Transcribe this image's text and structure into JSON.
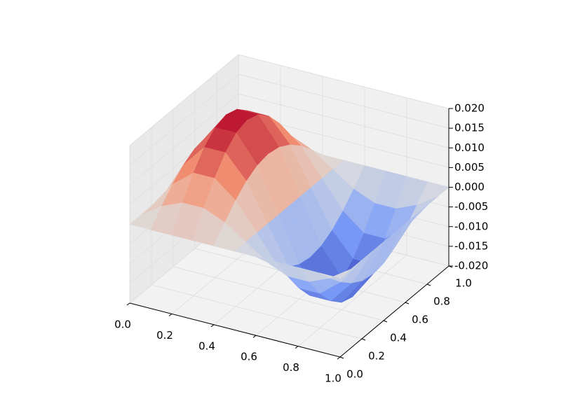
{
  "chart_data": {
    "type": "surface",
    "colormap": "coolwarm",
    "grid": true,
    "x": [
      0,
      0.1,
      0.2,
      0.3,
      0.4,
      0.5,
      0.6,
      0.7,
      0.8,
      0.9,
      1
    ],
    "y": [
      0,
      0.1,
      0.2,
      0.3,
      0.4,
      0.5,
      0.6,
      0.7,
      0.8,
      0.9,
      1
    ],
    "z": [
      [
        0,
        0,
        0,
        0,
        0,
        0,
        0,
        0,
        0,
        0,
        0
      ],
      [
        0,
        0.00363,
        0.00691,
        0.00951,
        0.01118,
        0.01176,
        0.01118,
        0.00951,
        0.00691,
        0.00363,
        0
      ],
      [
        0,
        0.00588,
        0.01118,
        0.01539,
        0.01809,
        0.01902,
        0.01809,
        0.01539,
        0.01118,
        0.00588,
        0
      ],
      [
        0,
        0.00588,
        0.01118,
        0.01539,
        0.01809,
        0.01902,
        0.01809,
        0.01539,
        0.01118,
        0.00588,
        0
      ],
      [
        0,
        0.00363,
        0.00691,
        0.00951,
        0.01118,
        0.01176,
        0.01118,
        0.00951,
        0.00691,
        0.00363,
        0
      ],
      [
        0,
        0,
        0,
        0,
        0,
        0,
        0,
        0,
        0,
        0,
        0
      ],
      [
        0,
        -0.00363,
        -0.00691,
        -0.00951,
        -0.01118,
        -0.01176,
        -0.01118,
        -0.00951,
        -0.00691,
        -0.00363,
        0
      ],
      [
        0,
        -0.00588,
        -0.01118,
        -0.01539,
        -0.01809,
        -0.01902,
        -0.01809,
        -0.01539,
        -0.01118,
        -0.00588,
        0
      ],
      [
        0,
        -0.00588,
        -0.01118,
        -0.01539,
        -0.01809,
        -0.01902,
        -0.01809,
        -0.01539,
        -0.01118,
        -0.00588,
        0
      ],
      [
        0,
        -0.00363,
        -0.00691,
        -0.00951,
        -0.01118,
        -0.01176,
        -0.01118,
        -0.00951,
        -0.00691,
        -0.00363,
        0
      ],
      [
        0,
        0,
        0,
        0,
        0,
        0,
        0,
        0,
        0,
        0,
        0
      ]
    ],
    "xlim": [
      0,
      1
    ],
    "ylim": [
      0,
      1
    ],
    "zlim": [
      -0.02,
      0.02
    ],
    "xticks": [
      {
        "value": 0,
        "label": "0.0"
      },
      0.2,
      0.4,
      0.6,
      0.8,
      {
        "value": 1,
        "label": "1.0"
      }
    ],
    "yticks": [
      {
        "value": 0,
        "label": "0.0"
      },
      0.2,
      0.4,
      0.6,
      0.8,
      {
        "value": 1,
        "label": "1.0"
      }
    ],
    "zticks": [
      {
        "value": -0.02,
        "label": "-0.020"
      },
      {
        "value": -0.015,
        "label": "-0.015"
      },
      {
        "value": -0.01,
        "label": "-0.010"
      },
      {
        "value": -0.005,
        "label": "-0.005"
      },
      {
        "value": 0,
        "label": "0.000"
      },
      {
        "value": 0.005,
        "label": "0.005"
      },
      {
        "value": 0.01,
        "label": "0.010"
      },
      {
        "value": 0.015,
        "label": "0.015"
      },
      {
        "value": 0.02,
        "label": "0.020"
      }
    ]
  }
}
